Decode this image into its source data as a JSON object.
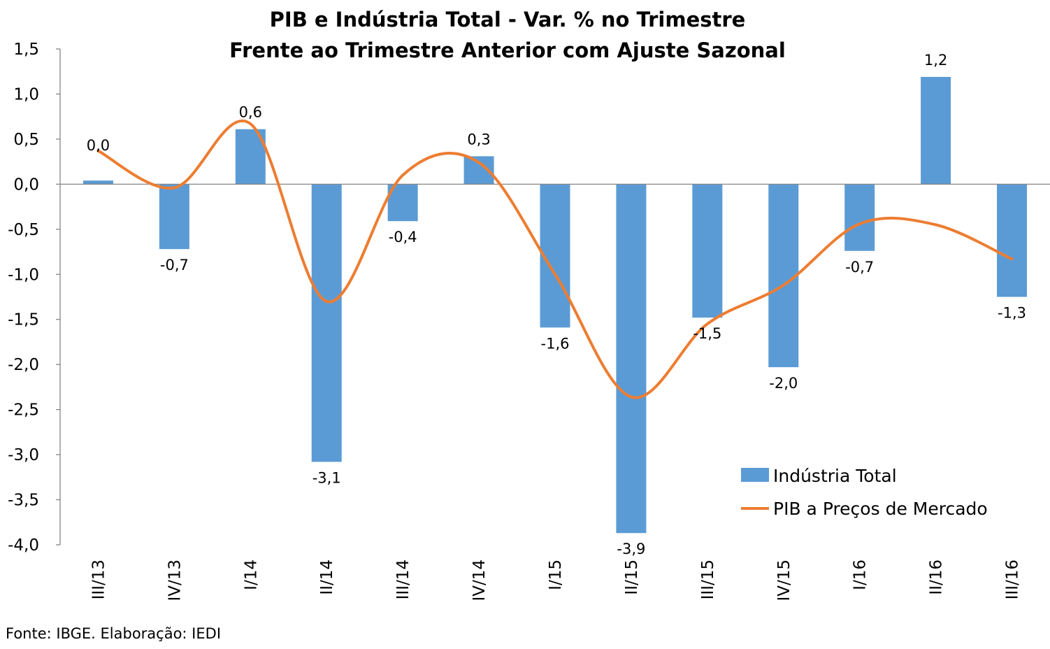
{
  "chart_data": {
    "type": "bar",
    "title": [
      "PIB e Indústria Total - Var. % no Trimestre",
      "Frente ao Trimestre Anterior com Ajuste Sazonal"
    ],
    "xlabel": "",
    "ylabel": "",
    "ylim": [
      -4.0,
      1.5
    ],
    "yticks": [
      1.5,
      1.0,
      0.5,
      0.0,
      -0.5,
      -1.0,
      -1.5,
      -2.0,
      -2.5,
      -3.0,
      -3.5,
      -4.0
    ],
    "ytick_labels": [
      "1,5",
      "1,0",
      "0,5",
      "0,0",
      "-0,5",
      "-1,0",
      "-1,5",
      "-2,0",
      "-2,5",
      "-3,0",
      "-3,5",
      "-4,0"
    ],
    "categories": [
      "III/13",
      "IV/13",
      "I/14",
      "II/14",
      "III/14",
      "IV/14",
      "I/15",
      "II/15",
      "III/15",
      "IV/15",
      "I/16",
      "II/16",
      "III/16"
    ],
    "series": [
      {
        "name": "Indústria Total",
        "kind": "bar",
        "color": "#5B9BD5",
        "values": [
          0.04,
          -0.72,
          0.61,
          -3.08,
          -0.41,
          0.31,
          -1.59,
          -3.87,
          -1.48,
          -2.03,
          -0.74,
          1.19,
          -1.25
        ],
        "labels": [
          "0,0",
          "-0,7",
          "0,6",
          "-3,1",
          "-0,4",
          "0,3",
          "-1,6",
          "-3,9",
          "-1,5",
          "-2,0",
          "-0,7",
          "1,2",
          "-1,3"
        ]
      },
      {
        "name": "PIB a Preços de Mercado",
        "kind": "line",
        "smooth": true,
        "color": "#ED7D31",
        "values": [
          0.37,
          -0.04,
          0.67,
          -1.3,
          0.1,
          0.24,
          -1.0,
          -2.36,
          -1.55,
          -1.12,
          -0.44,
          -0.45,
          -0.83
        ]
      }
    ],
    "legend_position": "bottom-right",
    "grid": false,
    "source": "Fonte: IBGE. Elaboração: IEDI"
  }
}
